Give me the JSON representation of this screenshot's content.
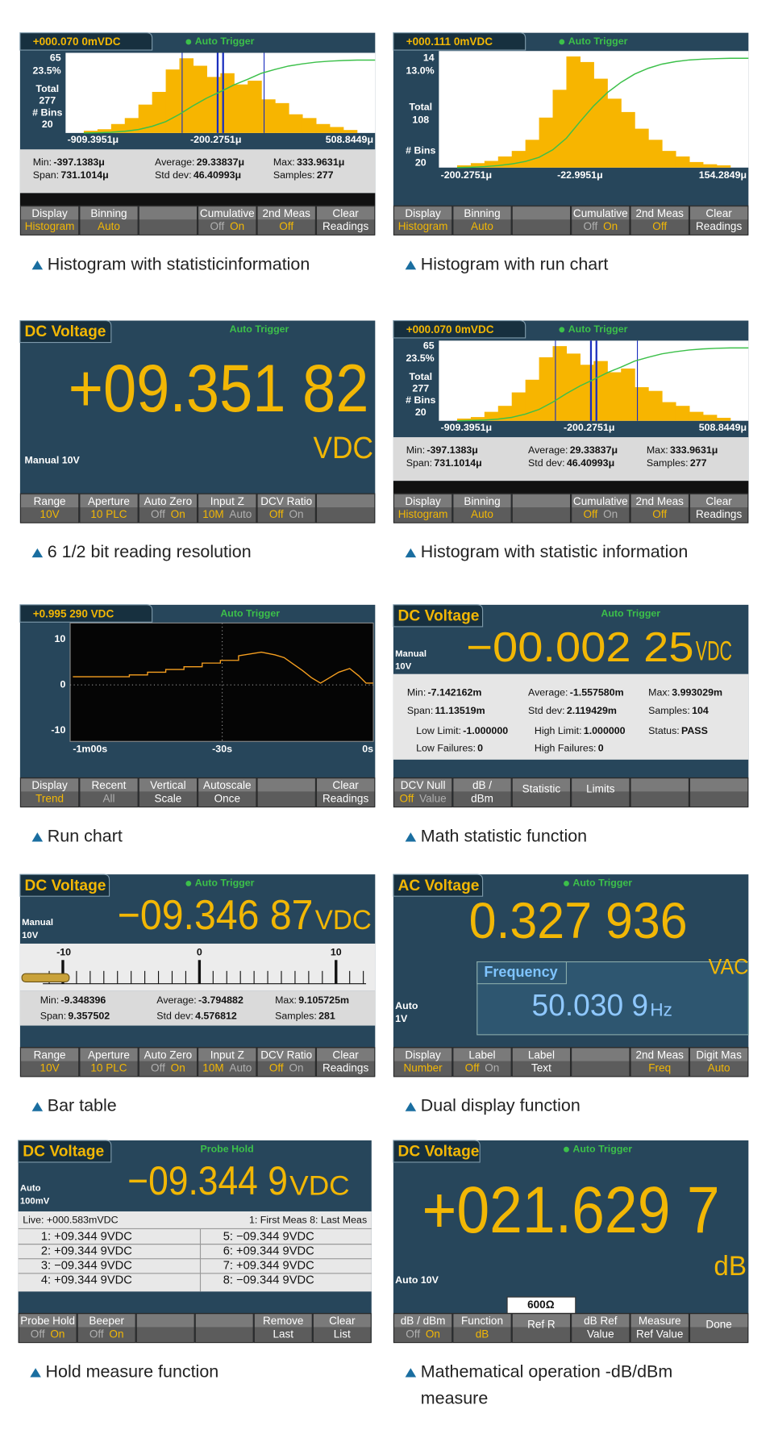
{
  "panels": [
    {
      "header": "+000.070 0mVDC",
      "trigger": "Auto Trigger",
      "texts": [
        "65",
        "23.5%",
        "Total",
        "277",
        "# Bins",
        "20",
        "-909.3951μ",
        "-200.2751μ",
        "508.8449μ"
      ],
      "stats": [
        [
          "Min:",
          "-397.1383μ"
        ],
        [
          "Span:",
          "731.1014μ"
        ],
        [
          "Average:",
          "29.33837μ"
        ],
        [
          "Std dev:",
          "46.40993μ"
        ],
        [
          "Max:",
          "333.9631μ"
        ],
        [
          "Samples:",
          "277"
        ]
      ],
      "softkeys": [
        {
          "label": "Display",
          "options": [
            "Histogram"
          ],
          "active": 0
        },
        {
          "label": "Binning",
          "options": [
            "Auto"
          ],
          "active": 0
        },
        null,
        {
          "label": "Cumulative",
          "options": [
            "Off",
            "On"
          ],
          "active": 1
        },
        {
          "label": "2nd Meas",
          "options": [
            "Off"
          ],
          "active": 0
        },
        {
          "label": "Clear",
          "options": [
            "Readings"
          ]
        }
      ],
      "caption": "Histogram with statisticinformation"
    },
    {
      "header": "+000.111 0mVDC",
      "trigger": "Auto Trigger",
      "texts": [
        "14",
        "13.0%",
        "Total",
        "108",
        "# Bins",
        "20",
        "-200.2751μ",
        "-22.9951μ",
        "154.2849μ"
      ],
      "softkeys": [
        {
          "label": "Display",
          "options": [
            "Histogram"
          ],
          "active": 0
        },
        {
          "label": "Binning",
          "options": [
            "Auto"
          ],
          "active": 0
        },
        null,
        {
          "label": "Cumulative",
          "options": [
            "Off",
            "On"
          ],
          "active": 1
        },
        {
          "label": "2nd Meas",
          "options": [
            "Off"
          ],
          "active": 0
        },
        {
          "label": "Clear",
          "options": [
            "Readings"
          ]
        }
      ],
      "caption": "Histogram with run chart"
    },
    {
      "header": "DC Voltage",
      "trigger": "Auto Trigger",
      "texts": [
        "+09.351 82",
        "VDC",
        "Manual 10V"
      ],
      "softkeys": [
        {
          "label": "Range",
          "options": [
            "10V"
          ],
          "active": 0
        },
        {
          "label": "Aperture",
          "options": [
            "10 PLC"
          ],
          "active": 0
        },
        {
          "label": "Auto Zero",
          "options": [
            "Off",
            "On"
          ],
          "active": 1
        },
        {
          "label": "Input Z",
          "options": [
            "10M",
            "Auto"
          ],
          "active": 0
        },
        {
          "label": "DCV Ratio",
          "options": [
            "Off",
            "On"
          ],
          "active": 0
        },
        null
      ],
      "caption": "6 1/2 bit reading resolution"
    },
    {
      "header": "+000.070 0mVDC",
      "trigger": "Auto Trigger",
      "texts": [
        "65",
        "23.5%",
        "Total",
        "277",
        "# Bins",
        "20",
        "-909.3951μ",
        "-200.2751μ",
        "508.8449μ"
      ],
      "stats": [
        [
          "Min:",
          "-397.1383μ"
        ],
        [
          "Span:",
          "731.1014μ"
        ],
        [
          "Average:",
          "29.33837μ"
        ],
        [
          "Std dev:",
          "46.40993μ"
        ],
        [
          "Max:",
          "333.9631μ"
        ],
        [
          "Samples:",
          "277"
        ]
      ],
      "softkeys": [
        {
          "label": "Display",
          "options": [
            "Histogram"
          ],
          "active": 0
        },
        {
          "label": "Binning",
          "options": [
            "Auto"
          ],
          "active": 0
        },
        null,
        {
          "label": "Cumulative",
          "options": [
            "Off",
            "On"
          ],
          "active": 0
        },
        {
          "label": "2nd Meas",
          "options": [
            "Off"
          ],
          "active": 0
        },
        {
          "label": "Clear",
          "options": [
            "Readings"
          ]
        }
      ],
      "caption": "Histogram with statistic information"
    },
    {
      "header": "+0.995 290   VDC",
      "trigger": "Auto Trigger",
      "texts": [
        "10",
        "0",
        "-10",
        "-1m00s",
        "-30s",
        "0s"
      ],
      "softkeys": [
        {
          "label": "Display",
          "options": [
            "Trend"
          ],
          "active": 0
        },
        {
          "label": "Recent",
          "options": [
            "All"
          ],
          "active": 1
        },
        {
          "label": "Vertical",
          "options": [
            "Scale"
          ]
        },
        {
          "label": "Autoscale",
          "options": [
            "Once"
          ]
        },
        null,
        {
          "label": "Clear",
          "options": [
            "Readings"
          ]
        }
      ],
      "caption": "Run chart"
    },
    {
      "header": "DC Voltage",
      "trigger": "Auto Trigger",
      "texts": [
        "Manual",
        "10V",
        "−00.002 25",
        "VDC"
      ],
      "stats": [
        [
          "Min:",
          "-7.142162m"
        ],
        [
          "Span:",
          "11.13519m"
        ],
        [
          "Average:",
          "-1.557580m"
        ],
        [
          "Std dev:",
          "2.119429m"
        ],
        [
          "Max:",
          "3.993029m"
        ],
        [
          "Samples:",
          "104"
        ],
        [
          "Low Limit:",
          "-1.000000"
        ],
        [
          "Low Failures:",
          "0"
        ],
        [
          "High Limit:",
          "1.000000"
        ],
        [
          "High Failures:",
          "0"
        ],
        [
          "Status:",
          "PASS"
        ]
      ],
      "softkeys": [
        {
          "label": "DCV Null",
          "options": [
            "Off",
            "Value"
          ],
          "active": 0
        },
        {
          "label": "dB /",
          "options": [
            "dBm"
          ]
        },
        {
          "label": "Statistic"
        },
        {
          "label": "Limits"
        },
        null,
        null
      ],
      "caption": "Math statistic function"
    },
    {
      "header": "DC Voltage",
      "trigger": "Auto Trigger",
      "texts": [
        "Manual",
        "10V",
        "−09.346 87",
        "VDC",
        "-10",
        "0",
        "10"
      ],
      "stats": [
        [
          "Min:",
          "-9.348396"
        ],
        [
          "Span:",
          "9.357502"
        ],
        [
          "Average:",
          "-3.794882"
        ],
        [
          "Std dev:",
          "4.576812"
        ],
        [
          "Max:",
          "9.105725m"
        ],
        [
          "Samples:",
          "281"
        ]
      ],
      "softkeys": [
        {
          "label": "Range",
          "options": [
            "10V"
          ],
          "active": 0
        },
        {
          "label": "Aperture",
          "options": [
            "10 PLC"
          ],
          "active": 0
        },
        {
          "label": "Auto Zero",
          "options": [
            "Off",
            "On"
          ],
          "active": 1
        },
        {
          "label": "Input Z",
          "options": [
            "10M",
            "Auto"
          ],
          "active": 0
        },
        {
          "label": "DCV Ratio",
          "options": [
            "Off",
            "On"
          ],
          "active": 0
        },
        {
          "label": "Clear",
          "options": [
            "Readings"
          ]
        }
      ],
      "caption": "Bar table"
    },
    {
      "header": "AC Voltage",
      "trigger": "Auto Trigger",
      "texts": [
        "0.327 936",
        "VAC",
        "Frequency",
        "50.030 9",
        "Hz",
        "Auto",
        "1V"
      ],
      "softkeys": [
        {
          "label": "Display",
          "options": [
            "Number"
          ],
          "active": 0
        },
        {
          "label": "Label",
          "options": [
            "Off",
            "On"
          ],
          "active": 0
        },
        {
          "label": "Label",
          "options": [
            "Text"
          ]
        },
        null,
        {
          "label": "2nd Meas",
          "options": [
            "Freq"
          ],
          "active": 0
        },
        {
          "label": "Digit Mas",
          "options": [
            "Auto"
          ],
          "active": 0
        }
      ],
      "caption": "Dual display function"
    },
    {
      "header": "DC Voltage",
      "trigger": "Probe Hold",
      "texts": [
        "Auto",
        "100mV",
        "−09.344 9",
        "VDC",
        "Live: +000.583mVDC",
        "1: First Meas 8: Last Meas",
        "1: +09.344 9VDC",
        "2: +09.344 9VDC",
        "3: −09.344 9VDC",
        "4: +09.344 9VDC",
        "5: −09.344 9VDC",
        "6: +09.344 9VDC",
        "7: +09.344 9VDC",
        "8: −09.344 9VDC"
      ],
      "softkeys": [
        {
          "label": "Probe Hold",
          "options": [
            "Off",
            "On"
          ],
          "active": 1
        },
        {
          "label": "Beeper",
          "options": [
            "Off",
            "On"
          ],
          "active": 1
        },
        null,
        null,
        {
          "label": "Remove",
          "options": [
            "Last"
          ]
        },
        {
          "label": "Clear",
          "options": [
            "List"
          ]
        }
      ],
      "caption": "Hold measure function"
    },
    {
      "header": "DC Voltage",
      "trigger": "Auto Trigger",
      "texts": [
        "+021.629 7",
        "dB",
        "Auto 10V",
        "600Ω"
      ],
      "softkeys": [
        {
          "label": "dB / dBm",
          "options": [
            "Off",
            "On"
          ],
          "active": 1
        },
        {
          "label": "Function",
          "options": [
            "dB"
          ],
          "active": 0
        },
        {
          "label": "Ref R"
        },
        {
          "label": "dB Ref",
          "options": [
            "Value"
          ]
        },
        {
          "label": "Measure",
          "options": [
            "Ref Value"
          ]
        },
        {
          "label": "Done"
        }
      ],
      "caption": "Mathematical operation -dB/dBm measure"
    }
  ]
}
